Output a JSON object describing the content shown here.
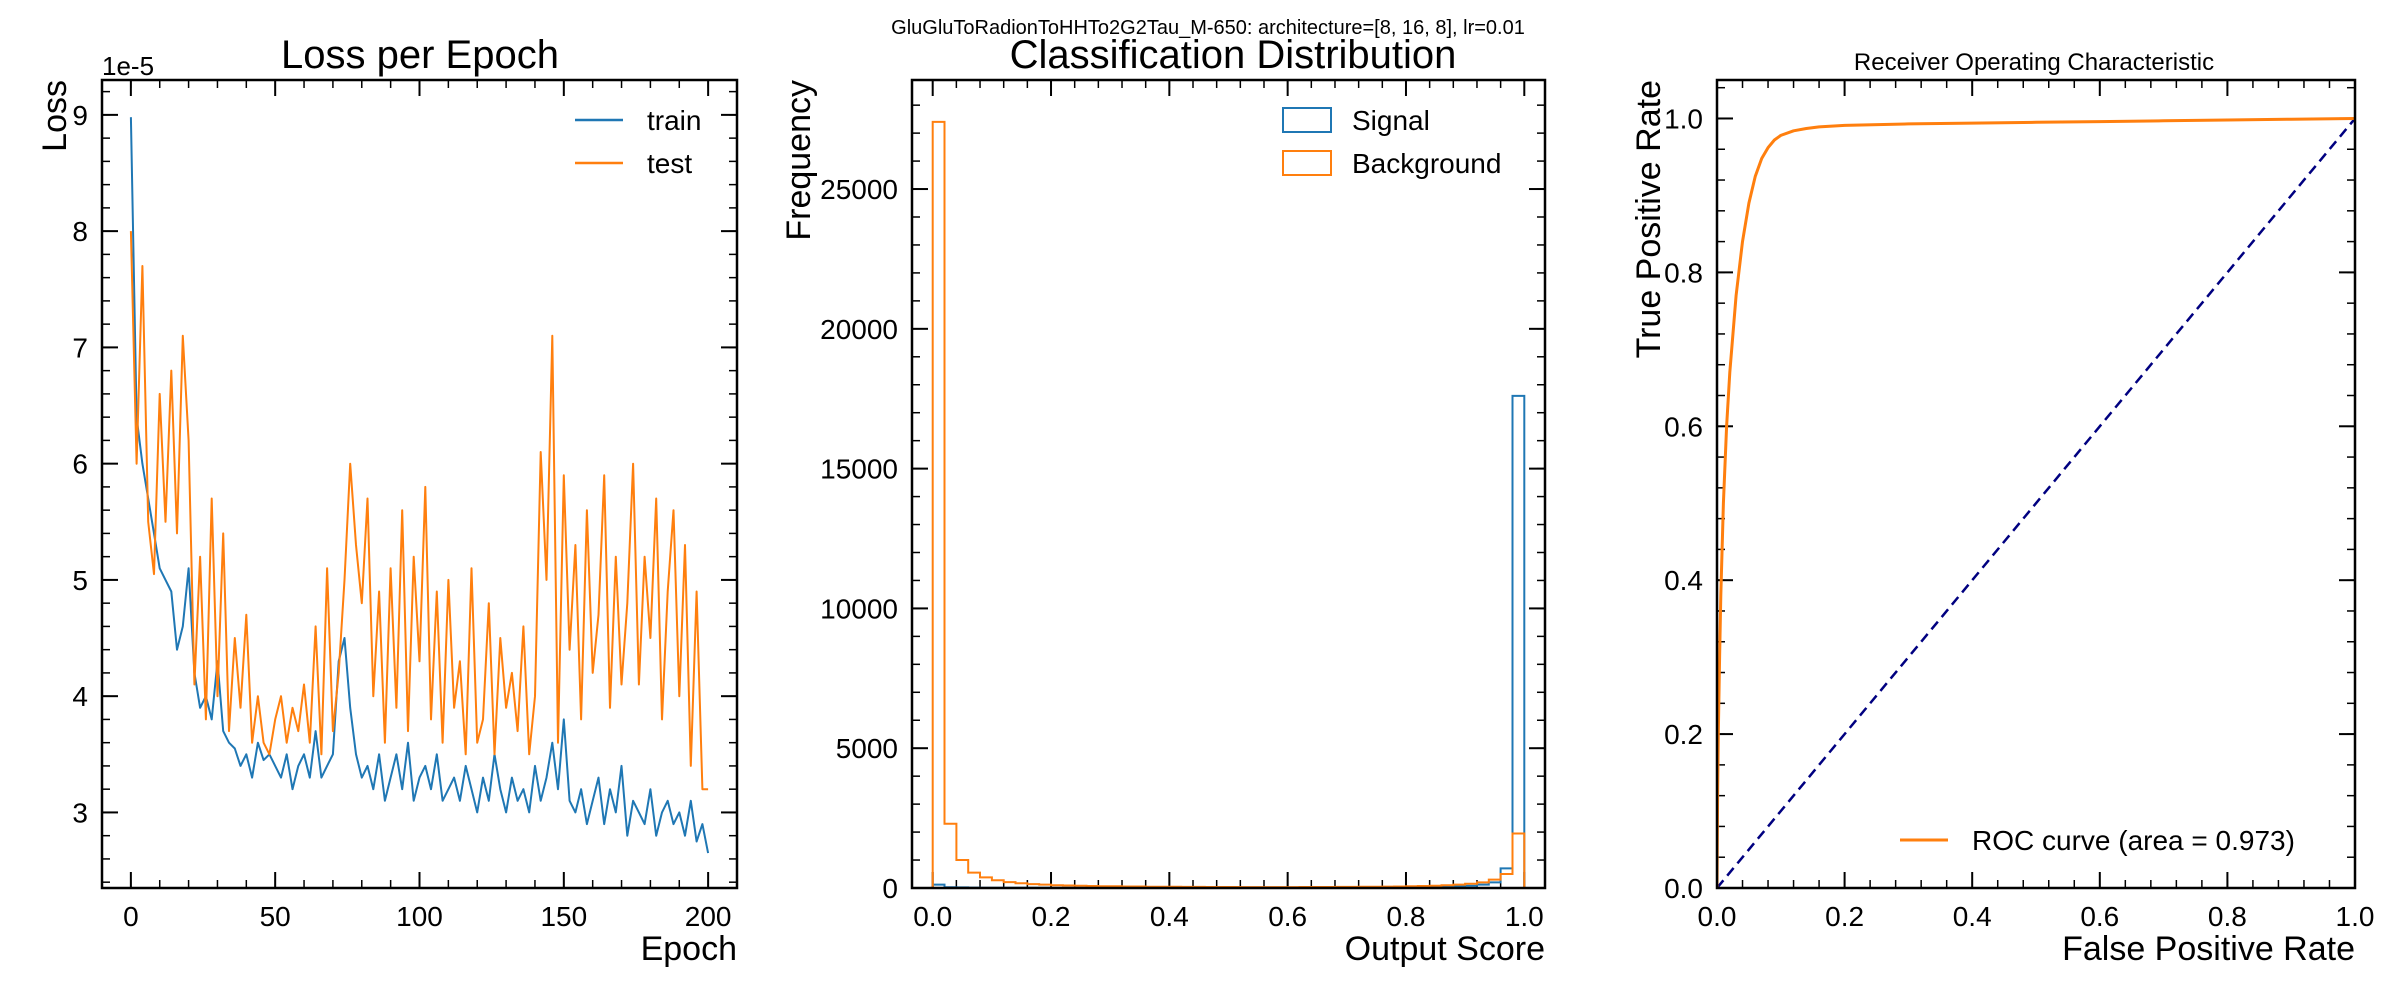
{
  "suptitle": "GluGluToRadionToHHTo2G2Tau_M-650: architecture=[8, 16, 8], lr=0.01",
  "colors": {
    "train": "#1f77b4",
    "test": "#ff7f0e",
    "roc": "#ff7f0e",
    "diagonal": "#000080"
  },
  "chart_data": [
    {
      "type": "line",
      "title": "Loss per Epoch",
      "xlabel": "Epoch",
      "ylabel": "Loss",
      "y_offset_label": "1e-5",
      "xlim": [
        -10,
        210
      ],
      "ylim": [
        2.35,
        9.3
      ],
      "xticks": [
        0,
        50,
        100,
        150,
        200
      ],
      "xtick_labels": [
        "0",
        "50",
        "100",
        "150",
        "200"
      ],
      "yticks": [
        3,
        4,
        5,
        6,
        7,
        8,
        9
      ],
      "ytick_labels": [
        "3",
        "4",
        "5",
        "6",
        "7",
        "8",
        "9"
      ],
      "legend_position": "top-right",
      "series": [
        {
          "name": "train",
          "x": [
            0,
            2,
            4,
            6,
            8,
            10,
            12,
            14,
            16,
            18,
            20,
            22,
            24,
            26,
            28,
            30,
            32,
            34,
            36,
            38,
            40,
            42,
            44,
            46,
            48,
            50,
            52,
            54,
            56,
            58,
            60,
            62,
            64,
            66,
            68,
            70,
            72,
            74,
            76,
            78,
            80,
            82,
            84,
            86,
            88,
            90,
            92,
            94,
            96,
            98,
            100,
            102,
            104,
            106,
            108,
            110,
            112,
            114,
            116,
            118,
            120,
            122,
            124,
            126,
            128,
            130,
            132,
            134,
            136,
            138,
            140,
            142,
            144,
            146,
            148,
            150,
            152,
            154,
            156,
            158,
            160,
            162,
            164,
            166,
            168,
            170,
            172,
            174,
            176,
            178,
            180,
            182,
            184,
            186,
            188,
            190,
            192,
            194,
            196,
            198,
            200
          ],
          "y": [
            8.98,
            6.4,
            6.0,
            5.7,
            5.4,
            5.1,
            5.0,
            4.9,
            4.4,
            4.6,
            5.1,
            4.2,
            3.9,
            4.0,
            3.8,
            4.3,
            3.7,
            3.6,
            3.55,
            3.4,
            3.5,
            3.3,
            3.6,
            3.45,
            3.5,
            3.4,
            3.3,
            3.5,
            3.2,
            3.4,
            3.5,
            3.3,
            3.7,
            3.3,
            3.4,
            3.5,
            4.3,
            4.5,
            3.9,
            3.5,
            3.3,
            3.4,
            3.2,
            3.5,
            3.1,
            3.3,
            3.5,
            3.2,
            3.6,
            3.1,
            3.3,
            3.4,
            3.2,
            3.5,
            3.1,
            3.2,
            3.3,
            3.1,
            3.4,
            3.2,
            3.0,
            3.3,
            3.1,
            3.5,
            3.2,
            3.0,
            3.3,
            3.1,
            3.2,
            3.0,
            3.4,
            3.1,
            3.3,
            3.6,
            3.2,
            3.8,
            3.1,
            3.0,
            3.2,
            2.9,
            3.1,
            3.3,
            2.9,
            3.2,
            3.0,
            3.4,
            2.8,
            3.1,
            3.0,
            2.9,
            3.2,
            2.8,
            3.0,
            3.1,
            2.9,
            3.0,
            2.8,
            3.1,
            2.75,
            2.9,
            2.65
          ]
        },
        {
          "name": "test",
          "x": [
            0,
            2,
            4,
            6,
            8,
            10,
            12,
            14,
            16,
            18,
            20,
            22,
            24,
            26,
            28,
            30,
            32,
            34,
            36,
            38,
            40,
            42,
            44,
            46,
            48,
            50,
            52,
            54,
            56,
            58,
            60,
            62,
            64,
            66,
            68,
            70,
            72,
            74,
            76,
            78,
            80,
            82,
            84,
            86,
            88,
            90,
            92,
            94,
            96,
            98,
            100,
            102,
            104,
            106,
            108,
            110,
            112,
            114,
            116,
            118,
            120,
            122,
            124,
            126,
            128,
            130,
            132,
            134,
            136,
            138,
            140,
            142,
            144,
            146,
            148,
            150,
            152,
            154,
            156,
            158,
            160,
            162,
            164,
            166,
            168,
            170,
            172,
            174,
            176,
            178,
            180,
            182,
            184,
            186,
            188,
            190,
            192,
            194,
            196,
            198,
            200
          ],
          "y": [
            8.0,
            6.0,
            7.7,
            5.5,
            5.05,
            6.6,
            5.5,
            6.8,
            5.4,
            7.1,
            6.2,
            4.1,
            5.2,
            3.8,
            5.7,
            4.0,
            5.4,
            3.7,
            4.5,
            3.9,
            4.7,
            3.6,
            4.0,
            3.6,
            3.5,
            3.8,
            4.0,
            3.6,
            3.9,
            3.7,
            4.1,
            3.6,
            4.6,
            3.5,
            5.1,
            3.7,
            4.2,
            5.0,
            6.0,
            5.3,
            4.8,
            5.7,
            4.0,
            4.9,
            3.6,
            5.1,
            3.9,
            5.6,
            3.7,
            5.2,
            4.3,
            5.8,
            3.8,
            4.9,
            3.6,
            5.0,
            3.9,
            4.3,
            3.5,
            5.1,
            3.6,
            3.8,
            4.8,
            3.5,
            4.5,
            3.9,
            4.2,
            3.7,
            4.6,
            3.5,
            4.0,
            6.1,
            5.0,
            7.1,
            3.6,
            5.9,
            4.4,
            5.3,
            3.8,
            5.6,
            4.2,
            4.7,
            5.9,
            3.9,
            5.2,
            4.1,
            4.8,
            6.0,
            4.1,
            5.2,
            4.5,
            5.7,
            3.8,
            4.9,
            5.6,
            4.0,
            5.3,
            3.4,
            4.9,
            3.2,
            3.2
          ]
        }
      ]
    },
    {
      "type": "bar",
      "title": "Classification Distribution",
      "xlabel": "Output Score",
      "ylabel": "Frequency",
      "xlim": [
        -0.035,
        1.035
      ],
      "ylim": [
        0,
        28900
      ],
      "xticks": [
        0,
        0.2,
        0.4,
        0.6,
        0.8,
        1.0
      ],
      "xtick_labels": [
        "0.0",
        "0.2",
        "0.4",
        "0.6",
        "0.8",
        "1.0"
      ],
      "yticks": [
        0,
        5000,
        10000,
        15000,
        20000,
        25000
      ],
      "ytick_labels": [
        "0",
        "5000",
        "10000",
        "15000",
        "20000",
        "25000"
      ],
      "legend_position": "top-right",
      "bin_edges": [
        0.0,
        0.02,
        0.04,
        0.06,
        0.08,
        0.1,
        0.12,
        0.14,
        0.16,
        0.18,
        0.2,
        0.22,
        0.24,
        0.26,
        0.28,
        0.3,
        0.32,
        0.34,
        0.36,
        0.38,
        0.4,
        0.42,
        0.44,
        0.46,
        0.48,
        0.5,
        0.52,
        0.54,
        0.56,
        0.58,
        0.6,
        0.62,
        0.64,
        0.66,
        0.68,
        0.7,
        0.72,
        0.74,
        0.76,
        0.78,
        0.8,
        0.82,
        0.84,
        0.86,
        0.88,
        0.9,
        0.92,
        0.94,
        0.96,
        0.98,
        1.0
      ],
      "series": [
        {
          "name": "Signal",
          "values": [
            120,
            30,
            20,
            15,
            10,
            10,
            8,
            8,
            6,
            6,
            5,
            5,
            5,
            5,
            5,
            5,
            5,
            5,
            5,
            5,
            5,
            5,
            5,
            5,
            5,
            5,
            5,
            5,
            5,
            5,
            5,
            5,
            5,
            5,
            5,
            5,
            10,
            10,
            15,
            20,
            25,
            30,
            40,
            50,
            60,
            80,
            120,
            200,
            700,
            17600
          ]
        },
        {
          "name": "Background",
          "values": [
            27400,
            2300,
            1000,
            550,
            380,
            280,
            210,
            170,
            140,
            120,
            100,
            90,
            80,
            72,
            66,
            60,
            55,
            52,
            48,
            45,
            42,
            40,
            38,
            36,
            35,
            34,
            33,
            32,
            32,
            32,
            33,
            34,
            35,
            36,
            38,
            40,
            42,
            45,
            50,
            55,
            60,
            70,
            80,
            100,
            120,
            150,
            200,
            300,
            500,
            1950
          ]
        }
      ]
    },
    {
      "type": "line",
      "title": "Receiver Operating Characteristic",
      "xlabel": "False Positive Rate",
      "ylabel": "True Positive Rate",
      "xlim": [
        0,
        1.0
      ],
      "ylim": [
        0,
        1.05
      ],
      "xticks": [
        0,
        0.2,
        0.4,
        0.6,
        0.8,
        1.0
      ],
      "xtick_labels": [
        "0.0",
        "0.2",
        "0.4",
        "0.6",
        "0.8",
        "1.0"
      ],
      "yticks": [
        0,
        0.2,
        0.4,
        0.6,
        0.8,
        1.0
      ],
      "ytick_labels": [
        "0.0",
        "0.2",
        "0.4",
        "0.6",
        "0.8",
        "1.0"
      ],
      "legend_position": "bottom-right",
      "series": [
        {
          "name": "ROC curve (area = 0.973)",
          "x": [
            0,
            0.001,
            0.002,
            0.004,
            0.006,
            0.01,
            0.015,
            0.02,
            0.03,
            0.04,
            0.05,
            0.06,
            0.07,
            0.08,
            0.09,
            0.1,
            0.12,
            0.14,
            0.16,
            0.2,
            0.3,
            0.4,
            0.5,
            0.6,
            0.7,
            0.8,
            0.9,
            1.0
          ],
          "y": [
            0,
            0.12,
            0.2,
            0.3,
            0.38,
            0.5,
            0.6,
            0.67,
            0.77,
            0.84,
            0.89,
            0.925,
            0.948,
            0.962,
            0.972,
            0.978,
            0.984,
            0.987,
            0.989,
            0.991,
            0.993,
            0.994,
            0.995,
            0.996,
            0.997,
            0.998,
            0.999,
            1.0
          ]
        },
        {
          "name": "",
          "x": [
            0,
            1
          ],
          "y": [
            0,
            1
          ]
        }
      ]
    }
  ]
}
